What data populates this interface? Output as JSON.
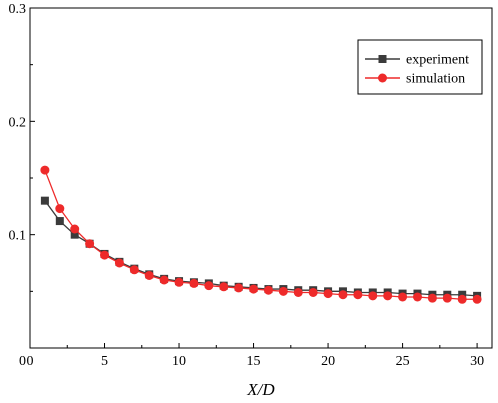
{
  "chart_data": {
    "type": "line",
    "title": "",
    "xlabel": "X/D",
    "ylabel": "",
    "xlim": [
      0,
      31
    ],
    "ylim": [
      0,
      0.3
    ],
    "xticks": [
      0,
      5,
      10,
      15,
      20,
      25,
      30
    ],
    "yticks": [
      0.1,
      0.2,
      0.3
    ],
    "ytick_labels": [
      "0.1",
      "0.2",
      "0.3"
    ],
    "grid": false,
    "legend_position": "top-right",
    "x": [
      1,
      2,
      3,
      4,
      5,
      6,
      7,
      8,
      9,
      10,
      11,
      12,
      13,
      14,
      15,
      16,
      17,
      18,
      19,
      20,
      21,
      22,
      23,
      24,
      25,
      26,
      27,
      28,
      29,
      30
    ],
    "series": [
      {
        "name": "experiment",
        "color": "#3b3b3b",
        "marker": "square",
        "values": [
          0.13,
          0.112,
          0.1,
          0.092,
          0.083,
          0.076,
          0.07,
          0.065,
          0.061,
          0.059,
          0.058,
          0.057,
          0.055,
          0.054,
          0.053,
          0.052,
          0.052,
          0.051,
          0.051,
          0.05,
          0.05,
          0.049,
          0.049,
          0.049,
          0.048,
          0.048,
          0.047,
          0.047,
          0.047,
          0.046
        ]
      },
      {
        "name": "simulation",
        "color": "#ee2a2a",
        "marker": "circle",
        "values": [
          0.157,
          0.123,
          0.105,
          0.092,
          0.082,
          0.075,
          0.069,
          0.064,
          0.06,
          0.058,
          0.057,
          0.055,
          0.054,
          0.053,
          0.052,
          0.051,
          0.05,
          0.049,
          0.049,
          0.048,
          0.047,
          0.047,
          0.046,
          0.046,
          0.045,
          0.045,
          0.044,
          0.044,
          0.043,
          0.043
        ]
      }
    ]
  }
}
